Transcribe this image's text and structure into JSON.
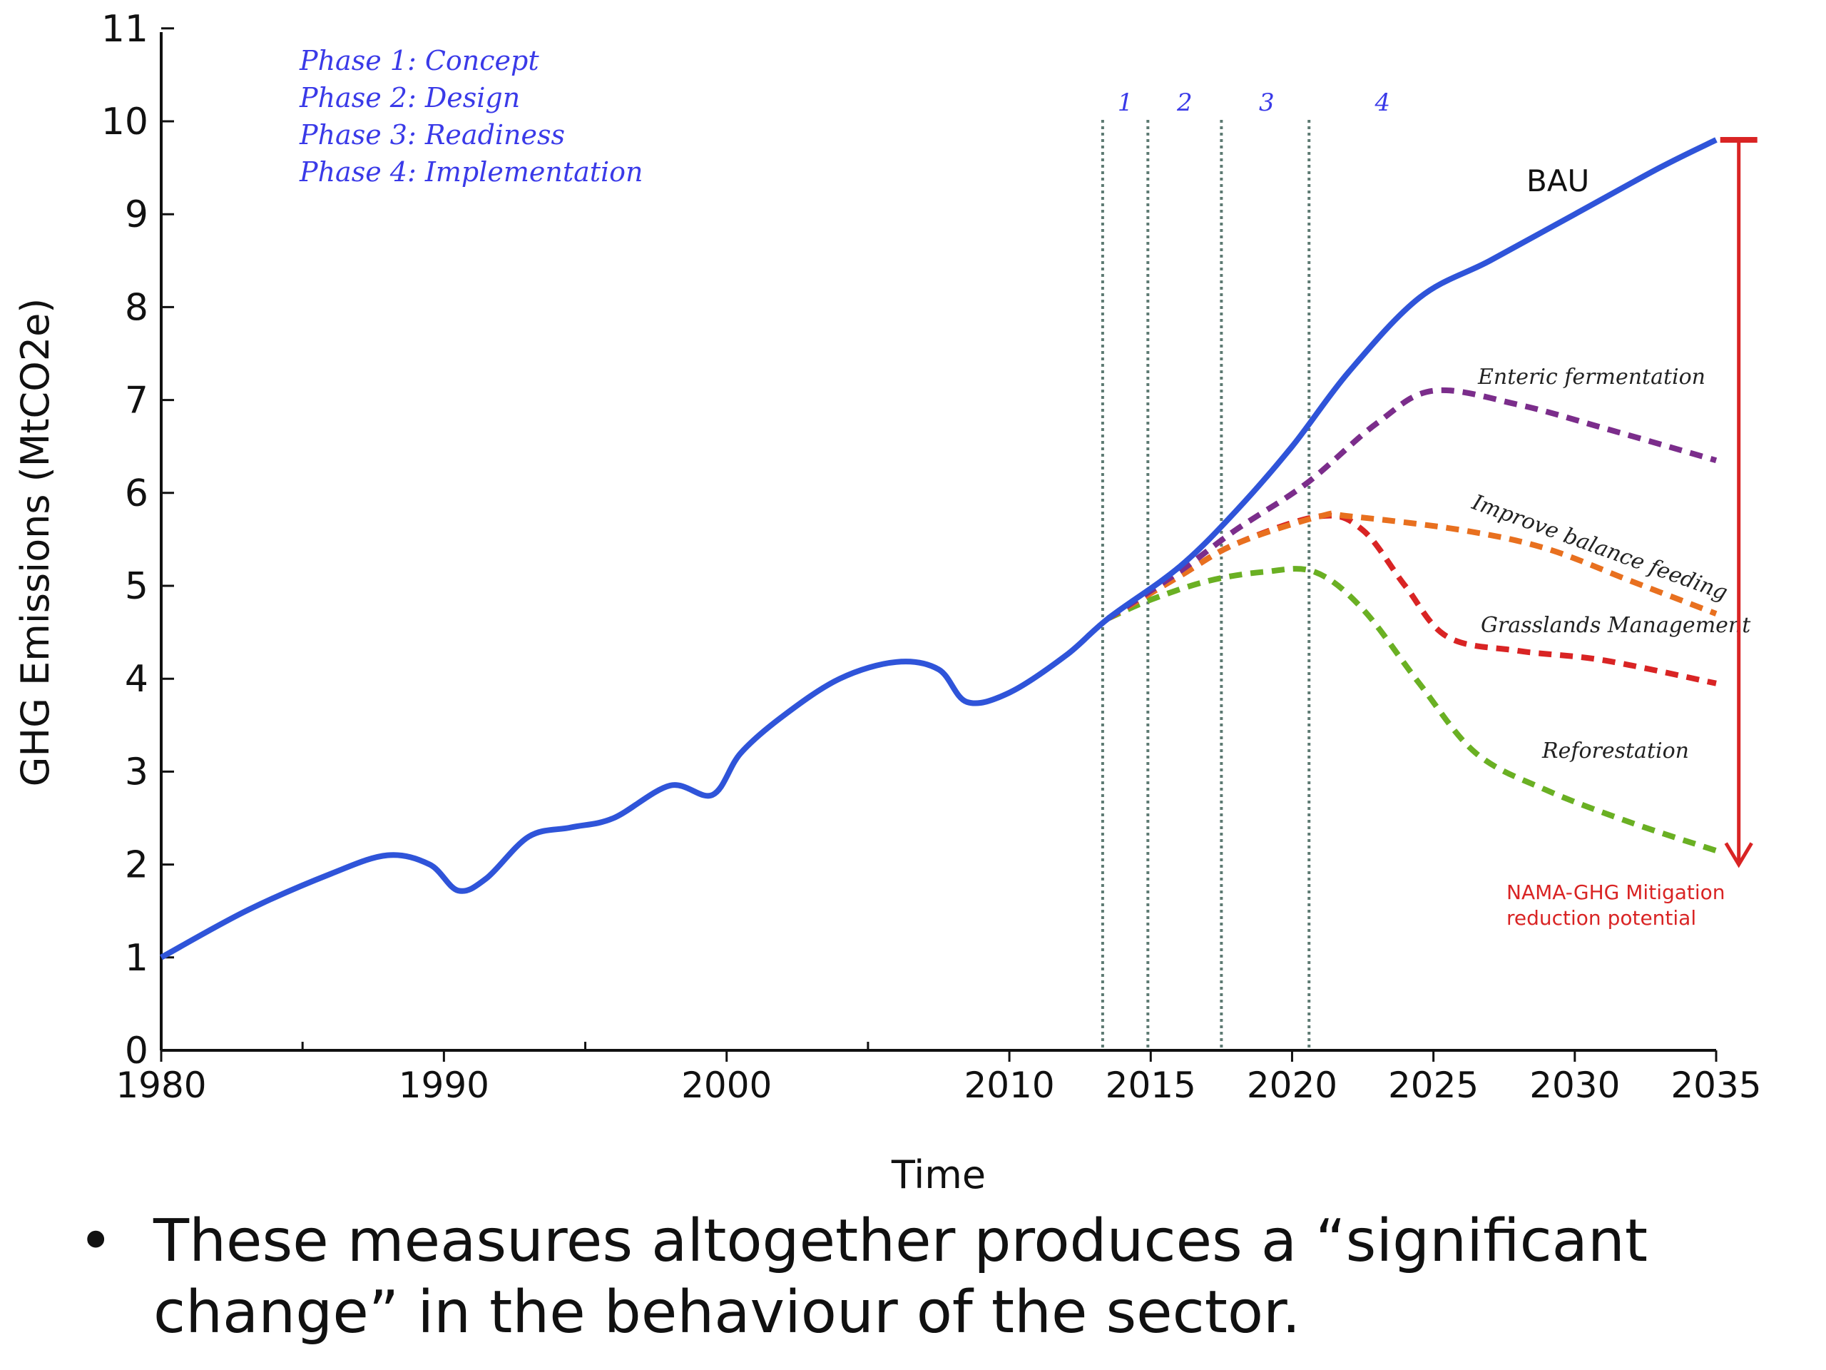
{
  "chart_data": {
    "type": "line",
    "xlabel": "Time",
    "ylabel": "GHG Emissions (MtCO2e)",
    "xlim": [
      1980,
      2035
    ],
    "ylim": [
      0,
      11
    ],
    "x_tick_labels": [
      "1980",
      "1990",
      "2000",
      "2010",
      "2015",
      "2020",
      "2025",
      "2030",
      "2035"
    ],
    "x_minor_ticks": [
      1985,
      1995,
      2005
    ],
    "y_tick_labels": [
      "0",
      "1",
      "2",
      "3",
      "4",
      "5",
      "6",
      "7",
      "8",
      "9",
      "10",
      "11"
    ],
    "grid": false,
    "phase_legend": [
      "Phase 1: Concept",
      "Phase 2: Design",
      "Phase 3: Readiness",
      "Phase 4: Implementation"
    ],
    "phase_markers": [
      {
        "label": "1",
        "x_line": 2013.3,
        "x_label": 2014.1
      },
      {
        "label": "2",
        "x_line": 2014.9,
        "x_label": 2016.2
      },
      {
        "label": "3",
        "x_line": 2017.5,
        "x_label": 2019.1
      },
      {
        "label": "4",
        "x_line": 2020.6,
        "x_label": 2023.2
      }
    ],
    "series": [
      {
        "name": "BAU",
        "color": "#2f54d9",
        "style": "solid",
        "x": [
          1980,
          1983,
          1986,
          1988,
          1989.5,
          1990.5,
          1991.5,
          1993,
          1994.5,
          1996,
          1998,
          1999.5,
          2000.5,
          2002,
          2004,
          2006,
          2007.5,
          2008.5,
          2010,
          2012,
          2013.5,
          2016,
          2018,
          2020,
          2022,
          2024.5,
          2027,
          2030,
          2033,
          2035
        ],
        "values": [
          1.0,
          1.5,
          1.9,
          2.1,
          2.0,
          1.72,
          1.85,
          2.3,
          2.4,
          2.5,
          2.85,
          2.75,
          3.2,
          3.6,
          4.0,
          4.18,
          4.1,
          3.75,
          3.85,
          4.25,
          4.65,
          5.2,
          5.8,
          6.5,
          7.3,
          8.1,
          8.5,
          9.0,
          9.5,
          9.8
        ]
      },
      {
        "name": "Enteric fermentation",
        "color": "#7b2d8b",
        "style": "dashed",
        "x": [
          2013.5,
          2016,
          2018,
          2020.5,
          2023,
          2025,
          2028,
          2031,
          2035
        ],
        "values": [
          4.65,
          5.15,
          5.6,
          6.1,
          6.75,
          7.1,
          6.95,
          6.7,
          6.35
        ]
      },
      {
        "name": "Improve balance feeding",
        "color": "#e8701f",
        "style": "dashed",
        "x": [
          2013.5,
          2016,
          2018,
          2021,
          2022,
          2026,
          2029,
          2032,
          2035
        ],
        "values": [
          4.65,
          5.1,
          5.45,
          5.75,
          5.75,
          5.6,
          5.4,
          5.05,
          4.7
        ]
      },
      {
        "name": "Grasslands Management",
        "color": "#d92424",
        "style": "dashed",
        "x": [
          2013.5,
          2016,
          2018,
          2021,
          2022.5,
          2024,
          2025.5,
          2028,
          2031,
          2035
        ],
        "values": [
          4.65,
          5.1,
          5.45,
          5.75,
          5.6,
          5.0,
          4.45,
          4.3,
          4.2,
          3.95
        ]
      },
      {
        "name": "Reforestation",
        "color": "#6ab023",
        "style": "dashed",
        "x": [
          2013.5,
          2015,
          2017,
          2019,
          2020.8,
          2022.5,
          2024.5,
          2026.5,
          2029,
          2032,
          2035
        ],
        "values": [
          4.65,
          4.85,
          5.05,
          5.15,
          5.15,
          4.75,
          3.95,
          3.2,
          2.8,
          2.45,
          2.15
        ]
      }
    ],
    "mitigation_arrow": {
      "x": 2035.8,
      "y_top": 9.8,
      "y_bottom": 2.0,
      "color": "#d92424",
      "label_line1": "NAMA-GHG Mitigation",
      "label_line2": "reduction potential"
    }
  },
  "bullet_text": {
    "symbol": "•",
    "text": "These measures altogether produces a “significant change” in the behaviour of  the sector."
  }
}
